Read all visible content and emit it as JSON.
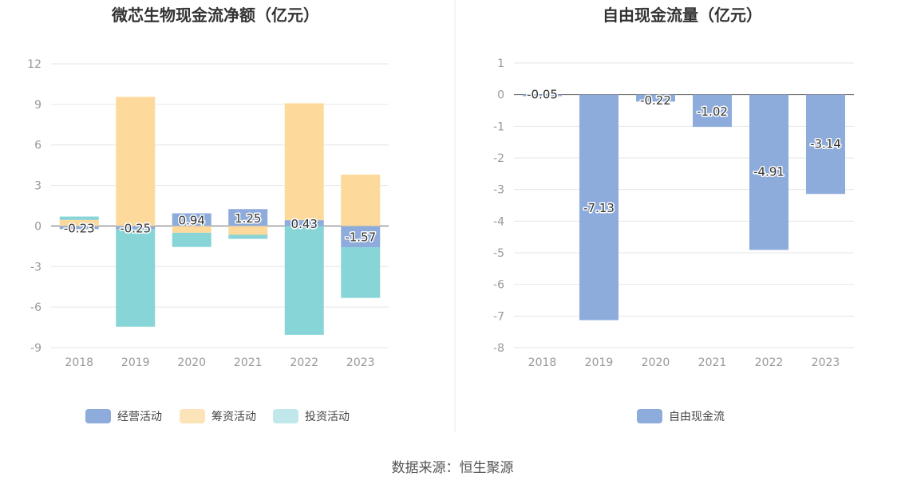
{
  "colors": {
    "operating": "#8eacdb",
    "financing": "#fdd99c",
    "investing": "#88d5d8",
    "free_cash_flow": "#8eacdb",
    "legend_investing": "#c0e8ea",
    "legend_financing": "#fde4b8"
  },
  "source": "数据来源：恒生聚源",
  "chart_data": [
    {
      "type": "bar",
      "stacked": true,
      "title": "微芯生物现金流净额（亿元）",
      "categories": [
        "2018",
        "2019",
        "2020",
        "2021",
        "2022",
        "2023"
      ],
      "ylim": [
        -9,
        12
      ],
      "yticks": [
        "12",
        "9",
        "6",
        "3",
        "0",
        "-3",
        "-6",
        "-9"
      ],
      "series": [
        {
          "name": "经营活动",
          "values": [
            -0.23,
            -0.25,
            0.94,
            1.25,
            0.43,
            -1.57
          ],
          "labels": [
            "-0.23",
            "-0.25",
            "0.94",
            "1.25",
            "0.43",
            "-1.57"
          ]
        },
        {
          "name": "筹资活动",
          "values": [
            0.45,
            9.55,
            -0.5,
            -0.65,
            8.65,
            3.8
          ]
        },
        {
          "name": "投资活动",
          "values": [
            0.25,
            -7.2,
            -1.05,
            -0.3,
            -8.05,
            -3.75
          ]
        }
      ],
      "legend": "bottom",
      "grid": true
    },
    {
      "type": "bar",
      "title": "自由现金流量（亿元）",
      "categories": [
        "2018",
        "2019",
        "2020",
        "2021",
        "2022",
        "2023"
      ],
      "ylim": [
        -8,
        1
      ],
      "yticks": [
        "1",
        "0",
        "-1",
        "-2",
        "-3",
        "-4",
        "-5",
        "-6",
        "-7",
        "-8"
      ],
      "series": [
        {
          "name": "自由现金流",
          "values": [
            -0.05,
            -7.13,
            -0.22,
            -1.02,
            -4.91,
            -3.14
          ],
          "labels": [
            "-0.05",
            "-7.13",
            "-0.22",
            "-1.02",
            "-4.91",
            "-3.14"
          ]
        }
      ],
      "legend": "bottom",
      "grid": true
    }
  ]
}
